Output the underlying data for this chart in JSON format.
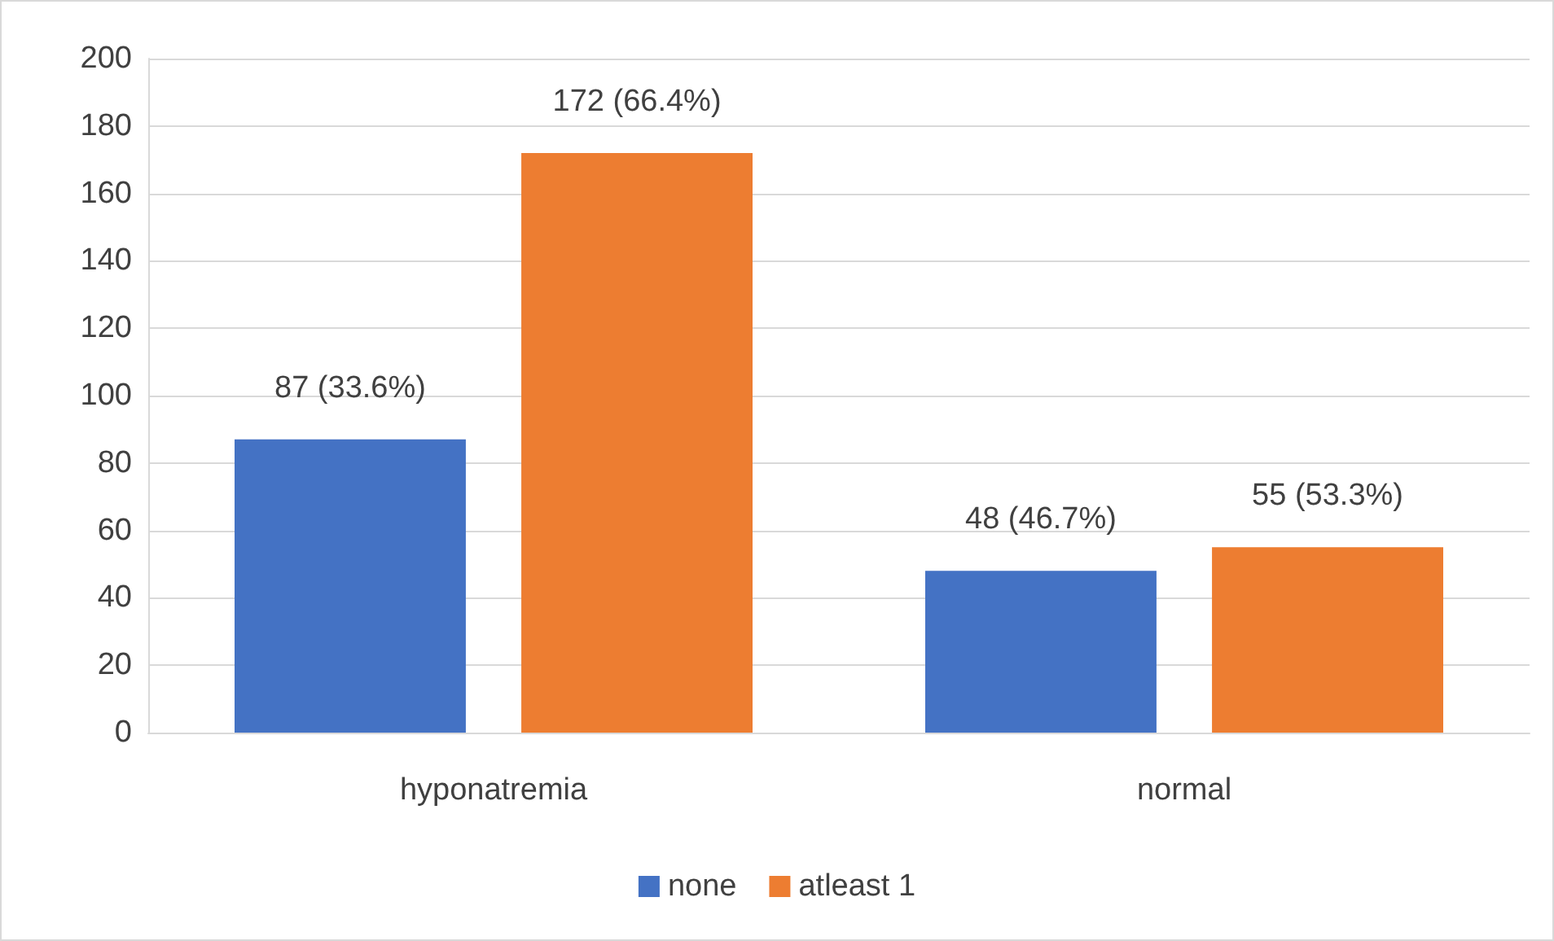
{
  "chart_data": {
    "type": "bar",
    "categories": [
      "hyponatremia",
      "normal"
    ],
    "series": [
      {
        "name": "none",
        "color": "#4472c4",
        "values": [
          87,
          48
        ],
        "value_labels": [
          "87 (33.6%)",
          "48 (46.7%)"
        ]
      },
      {
        "name": "atleast 1",
        "color": "#ed7d31",
        "values": [
          172,
          55
        ],
        "value_labels": [
          "172 (66.4%)",
          "55 (53.3%)"
        ]
      }
    ],
    "ylim": [
      0,
      200
    ],
    "yticks": [
      0,
      20,
      40,
      60,
      80,
      100,
      120,
      140,
      160,
      180,
      200
    ],
    "grid": "y",
    "legend": "bottom"
  }
}
